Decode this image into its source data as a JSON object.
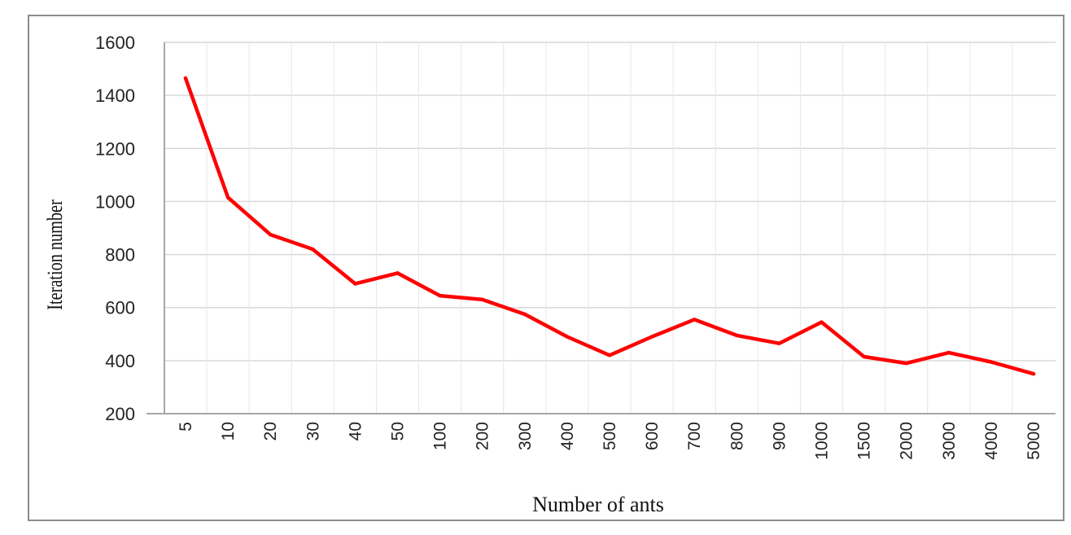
{
  "chart_data": {
    "type": "line",
    "title": "",
    "xlabel": "Number of ants",
    "ylabel": "Iteration number",
    "categories": [
      "5",
      "10",
      "20",
      "30",
      "40",
      "50",
      "100",
      "200",
      "300",
      "400",
      "500",
      "600",
      "700",
      "800",
      "900",
      "1000",
      "1500",
      "2000",
      "3000",
      "4000",
      "5000"
    ],
    "series": [
      {
        "values": [
          1465,
          1015,
          875,
          820,
          690,
          730,
          645,
          630,
          575,
          490,
          420,
          490,
          555,
          495,
          465,
          545,
          415,
          390,
          430,
          395,
          350
        ]
      }
    ],
    "ylim": [
      200,
      1600
    ],
    "yticks": [
      "200",
      "400",
      "600",
      "800",
      "1000",
      "1200",
      "1400",
      "1600"
    ],
    "grid": true,
    "legend": "none",
    "line_color": "#ff0000",
    "grid_color": "#d9d9d9",
    "axis_color": "#8c8c8c"
  }
}
